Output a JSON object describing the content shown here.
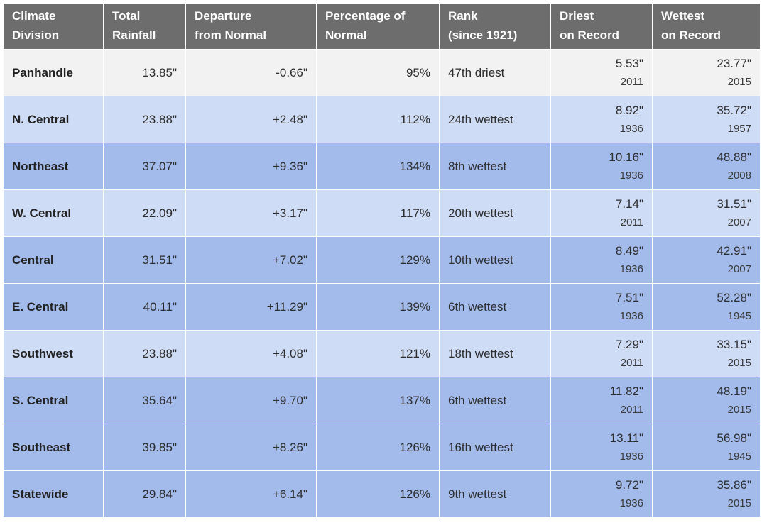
{
  "headers": [
    {
      "line1": "Climate",
      "line2": "Division"
    },
    {
      "line1": "Total",
      "line2": "Rainfall"
    },
    {
      "line1": "Departure",
      "line2": "from Normal"
    },
    {
      "line1": "Percentage of",
      "line2": "Normal"
    },
    {
      "line1": "Rank",
      "line2": "(since 1921)"
    },
    {
      "line1": "Driest",
      "line2": "on Record"
    },
    {
      "line1": "Wettest",
      "line2": "on Record"
    }
  ],
  "row_colors": {
    "light_gray": "#f2f2f2",
    "light_blue": "#cfdcf5",
    "medium_blue": "#a3bbeb",
    "header_gray": "#6d6d6d"
  },
  "rows": [
    {
      "division": "Panhandle",
      "total": "13.85\"",
      "departure": "-0.66\"",
      "percent": "95%",
      "rank": "47th driest",
      "driest": "5.53\"",
      "driest_year": "2011",
      "wettest": "23.77\"",
      "wettest_year": "2015",
      "shade": 0
    },
    {
      "division": "N. Central",
      "total": "23.88\"",
      "departure": "+2.48\"",
      "percent": "112%",
      "rank": "24th wettest",
      "driest": "8.92\"",
      "driest_year": "1936",
      "wettest": "35.72\"",
      "wettest_year": "1957",
      "shade": 1
    },
    {
      "division": "Northeast",
      "total": "37.07\"",
      "departure": "+9.36\"",
      "percent": "134%",
      "rank": "8th wettest",
      "driest": "10.16\"",
      "driest_year": "1936",
      "wettest": "48.88\"",
      "wettest_year": "2008",
      "shade": 2
    },
    {
      "division": "W. Central",
      "total": "22.09\"",
      "departure": "+3.17\"",
      "percent": "117%",
      "rank": "20th wettest",
      "driest": "7.14\"",
      "driest_year": "2011",
      "wettest": "31.51\"",
      "wettest_year": "2007",
      "shade": 1
    },
    {
      "division": "Central",
      "total": "31.51\"",
      "departure": "+7.02\"",
      "percent": "129%",
      "rank": "10th wettest",
      "driest": "8.49\"",
      "driest_year": "1936",
      "wettest": "42.91\"",
      "wettest_year": "2007",
      "shade": 2
    },
    {
      "division": "E. Central",
      "total": "40.11\"",
      "departure": "+11.29\"",
      "percent": "139%",
      "rank": "6th wettest",
      "driest": "7.51\"",
      "driest_year": "1936",
      "wettest": "52.28\"",
      "wettest_year": "1945",
      "shade": 2
    },
    {
      "division": "Southwest",
      "total": "23.88\"",
      "departure": "+4.08\"",
      "percent": "121%",
      "rank": "18th wettest",
      "driest": "7.29\"",
      "driest_year": "2011",
      "wettest": "33.15\"",
      "wettest_year": "2015",
      "shade": 1
    },
    {
      "division": "S. Central",
      "total": "35.64\"",
      "departure": "+9.70\"",
      "percent": "137%",
      "rank": "6th wettest",
      "driest": "11.82\"",
      "driest_year": "2011",
      "wettest": "48.19\"",
      "wettest_year": "2015",
      "shade": 2
    },
    {
      "division": "Southeast",
      "total": "39.85\"",
      "departure": "+8.26\"",
      "percent": "126%",
      "rank": "16th wettest",
      "driest": "13.11\"",
      "driest_year": "1936",
      "wettest": "56.98\"",
      "wettest_year": "1945",
      "shade": 2
    },
    {
      "division": "Statewide",
      "total": "29.84\"",
      "departure": "+6.14\"",
      "percent": "126%",
      "rank": "9th wettest",
      "driest": "9.72\"",
      "driest_year": "1936",
      "wettest": "35.86\"",
      "wettest_year": "2015",
      "shade": 2
    }
  ]
}
